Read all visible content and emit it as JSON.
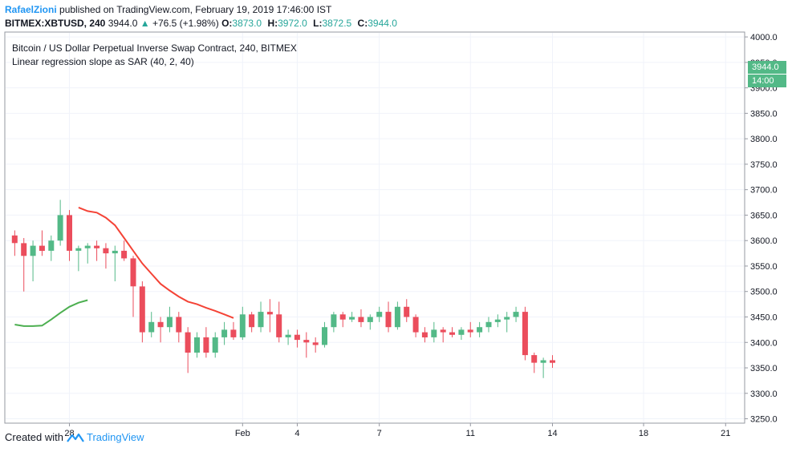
{
  "header": {
    "author": "RafaelZioni",
    "published_text": "published on TradingView.com, February 19, 2019 17:46:00 IST",
    "symbol": "BITMEX:XBTUSD, 240",
    "last": "3944.0",
    "change": "+76.5 (+1.98%)",
    "ohlc": {
      "o_label": "O:",
      "o": "3873.0",
      "h_label": "H:",
      "h": "3972.0",
      "l_label": "L:",
      "l": "3872.5",
      "c_label": "C:",
      "c": "3944.0"
    }
  },
  "legend": {
    "title": "Bitcoin / US Dollar Perpetual Inverse Swap Contract, 240, BITMEX",
    "indicator": "Linear regression slope as SAR (40, 2, 40)"
  },
  "price_tag": {
    "price": "3944.0",
    "countdown": "14:00"
  },
  "footer": {
    "created_with": "Created with",
    "brand": "TradingView"
  },
  "colors": {
    "up": "#53b987",
    "down": "#eb4d5c",
    "sar_up": "#4caf50",
    "sar_down": "#f44336",
    "accent": "#2196f3"
  },
  "chart_data": {
    "type": "candlestick",
    "title": "Bitcoin / US Dollar Perpetual Inverse Swap Contract, 240, BITMEX",
    "y_ticks": [
      "3250.0",
      "3300.0",
      "3350.0",
      "3400.0",
      "3450.0",
      "3500.0",
      "3550.0",
      "3600.0",
      "3650.0",
      "3700.0",
      "3750.0",
      "3800.0",
      "3850.0",
      "3900.0",
      "3950.0",
      "4000.0"
    ],
    "x_ticks": [
      "28",
      "Feb",
      "4",
      "7",
      "11",
      "14",
      "18",
      "21"
    ],
    "x_tick_positions": [
      6,
      25,
      31,
      40,
      50,
      59,
      69,
      78
    ],
    "ylim": [
      3243,
      4008
    ],
    "xlim": [
      -1,
      80
    ],
    "candles": [
      [
        3610,
        3620,
        3570,
        3595
      ],
      [
        3595,
        3605,
        3500,
        3570
      ],
      [
        3570,
        3600,
        3520,
        3590
      ],
      [
        3590,
        3620,
        3570,
        3580
      ],
      [
        3580,
        3610,
        3560,
        3600
      ],
      [
        3600,
        3680,
        3590,
        3650
      ],
      [
        3650,
        3660,
        3560,
        3580
      ],
      [
        3580,
        3590,
        3540,
        3585
      ],
      [
        3585,
        3595,
        3555,
        3590
      ],
      [
        3590,
        3600,
        3560,
        3585
      ],
      [
        3585,
        3595,
        3545,
        3575
      ],
      [
        3575,
        3590,
        3520,
        3580
      ],
      [
        3580,
        3600,
        3560,
        3565
      ],
      [
        3565,
        3570,
        3450,
        3510
      ],
      [
        3510,
        3520,
        3400,
        3420
      ],
      [
        3420,
        3460,
        3410,
        3440
      ],
      [
        3440,
        3450,
        3400,
        3430
      ],
      [
        3430,
        3470,
        3420,
        3450
      ],
      [
        3450,
        3460,
        3400,
        3420
      ],
      [
        3420,
        3430,
        3340,
        3380
      ],
      [
        3380,
        3420,
        3370,
        3410
      ],
      [
        3410,
        3430,
        3370,
        3380
      ],
      [
        3380,
        3420,
        3370,
        3410
      ],
      [
        3410,
        3440,
        3395,
        3425
      ],
      [
        3425,
        3440,
        3405,
        3410
      ],
      [
        3410,
        3470,
        3405,
        3455
      ],
      [
        3455,
        3460,
        3420,
        3430
      ],
      [
        3430,
        3480,
        3420,
        3460
      ],
      [
        3460,
        3485,
        3420,
        3455
      ],
      [
        3455,
        3480,
        3400,
        3410
      ],
      [
        3410,
        3425,
        3395,
        3415
      ],
      [
        3415,
        3425,
        3390,
        3405
      ],
      [
        3405,
        3420,
        3370,
        3400
      ],
      [
        3400,
        3410,
        3380,
        3395
      ],
      [
        3395,
        3440,
        3390,
        3430
      ],
      [
        3430,
        3460,
        3420,
        3455
      ],
      [
        3455,
        3460,
        3430,
        3445
      ],
      [
        3445,
        3460,
        3440,
        3450
      ],
      [
        3450,
        3465,
        3430,
        3440
      ],
      [
        3440,
        3455,
        3425,
        3450
      ],
      [
        3450,
        3470,
        3440,
        3460
      ],
      [
        3460,
        3480,
        3420,
        3430
      ],
      [
        3430,
        3480,
        3425,
        3470
      ],
      [
        3470,
        3485,
        3440,
        3450
      ],
      [
        3450,
        3455,
        3410,
        3420
      ],
      [
        3420,
        3430,
        3400,
        3410
      ],
      [
        3410,
        3440,
        3400,
        3425
      ],
      [
        3425,
        3430,
        3400,
        3420
      ],
      [
        3420,
        3430,
        3410,
        3415
      ],
      [
        3415,
        3430,
        3405,
        3425
      ],
      [
        3425,
        3440,
        3410,
        3420
      ],
      [
        3420,
        3440,
        3410,
        3430
      ],
      [
        3430,
        3450,
        3420,
        3440
      ],
      [
        3440,
        3455,
        3430,
        3445
      ],
      [
        3445,
        3460,
        3420,
        3450
      ],
      [
        3450,
        3470,
        3440,
        3460
      ],
      [
        3460,
        3470,
        3365,
        3375
      ],
      [
        3375,
        3380,
        3340,
        3360
      ],
      [
        3360,
        3370,
        3330,
        3365
      ],
      [
        3365,
        3375,
        3350,
        3360
      ]
    ],
    "sar_segments": [
      {
        "trend": "up",
        "points": [
          [
            0,
            3435
          ],
          [
            1,
            3432
          ],
          [
            2,
            3432
          ],
          [
            3,
            3433
          ],
          [
            4,
            3445
          ],
          [
            5,
            3458
          ],
          [
            6,
            3470
          ],
          [
            7,
            3478
          ],
          [
            8,
            3483
          ]
        ]
      },
      {
        "trend": "down",
        "points": [
          [
            7,
            3665
          ],
          [
            8,
            3658
          ],
          [
            9,
            3655
          ],
          [
            10,
            3645
          ],
          [
            11,
            3630
          ],
          [
            12,
            3605
          ],
          [
            13,
            3580
          ],
          [
            14,
            3555
          ],
          [
            15,
            3535
          ],
          [
            16,
            3515
          ],
          [
            17,
            3502
          ],
          [
            18,
            3490
          ],
          [
            19,
            3480
          ],
          [
            20,
            3475
          ],
          [
            21,
            3468
          ],
          [
            22,
            3462
          ],
          [
            23,
            3455
          ],
          [
            24,
            3448
          ]
        ]
      }
    ]
  }
}
